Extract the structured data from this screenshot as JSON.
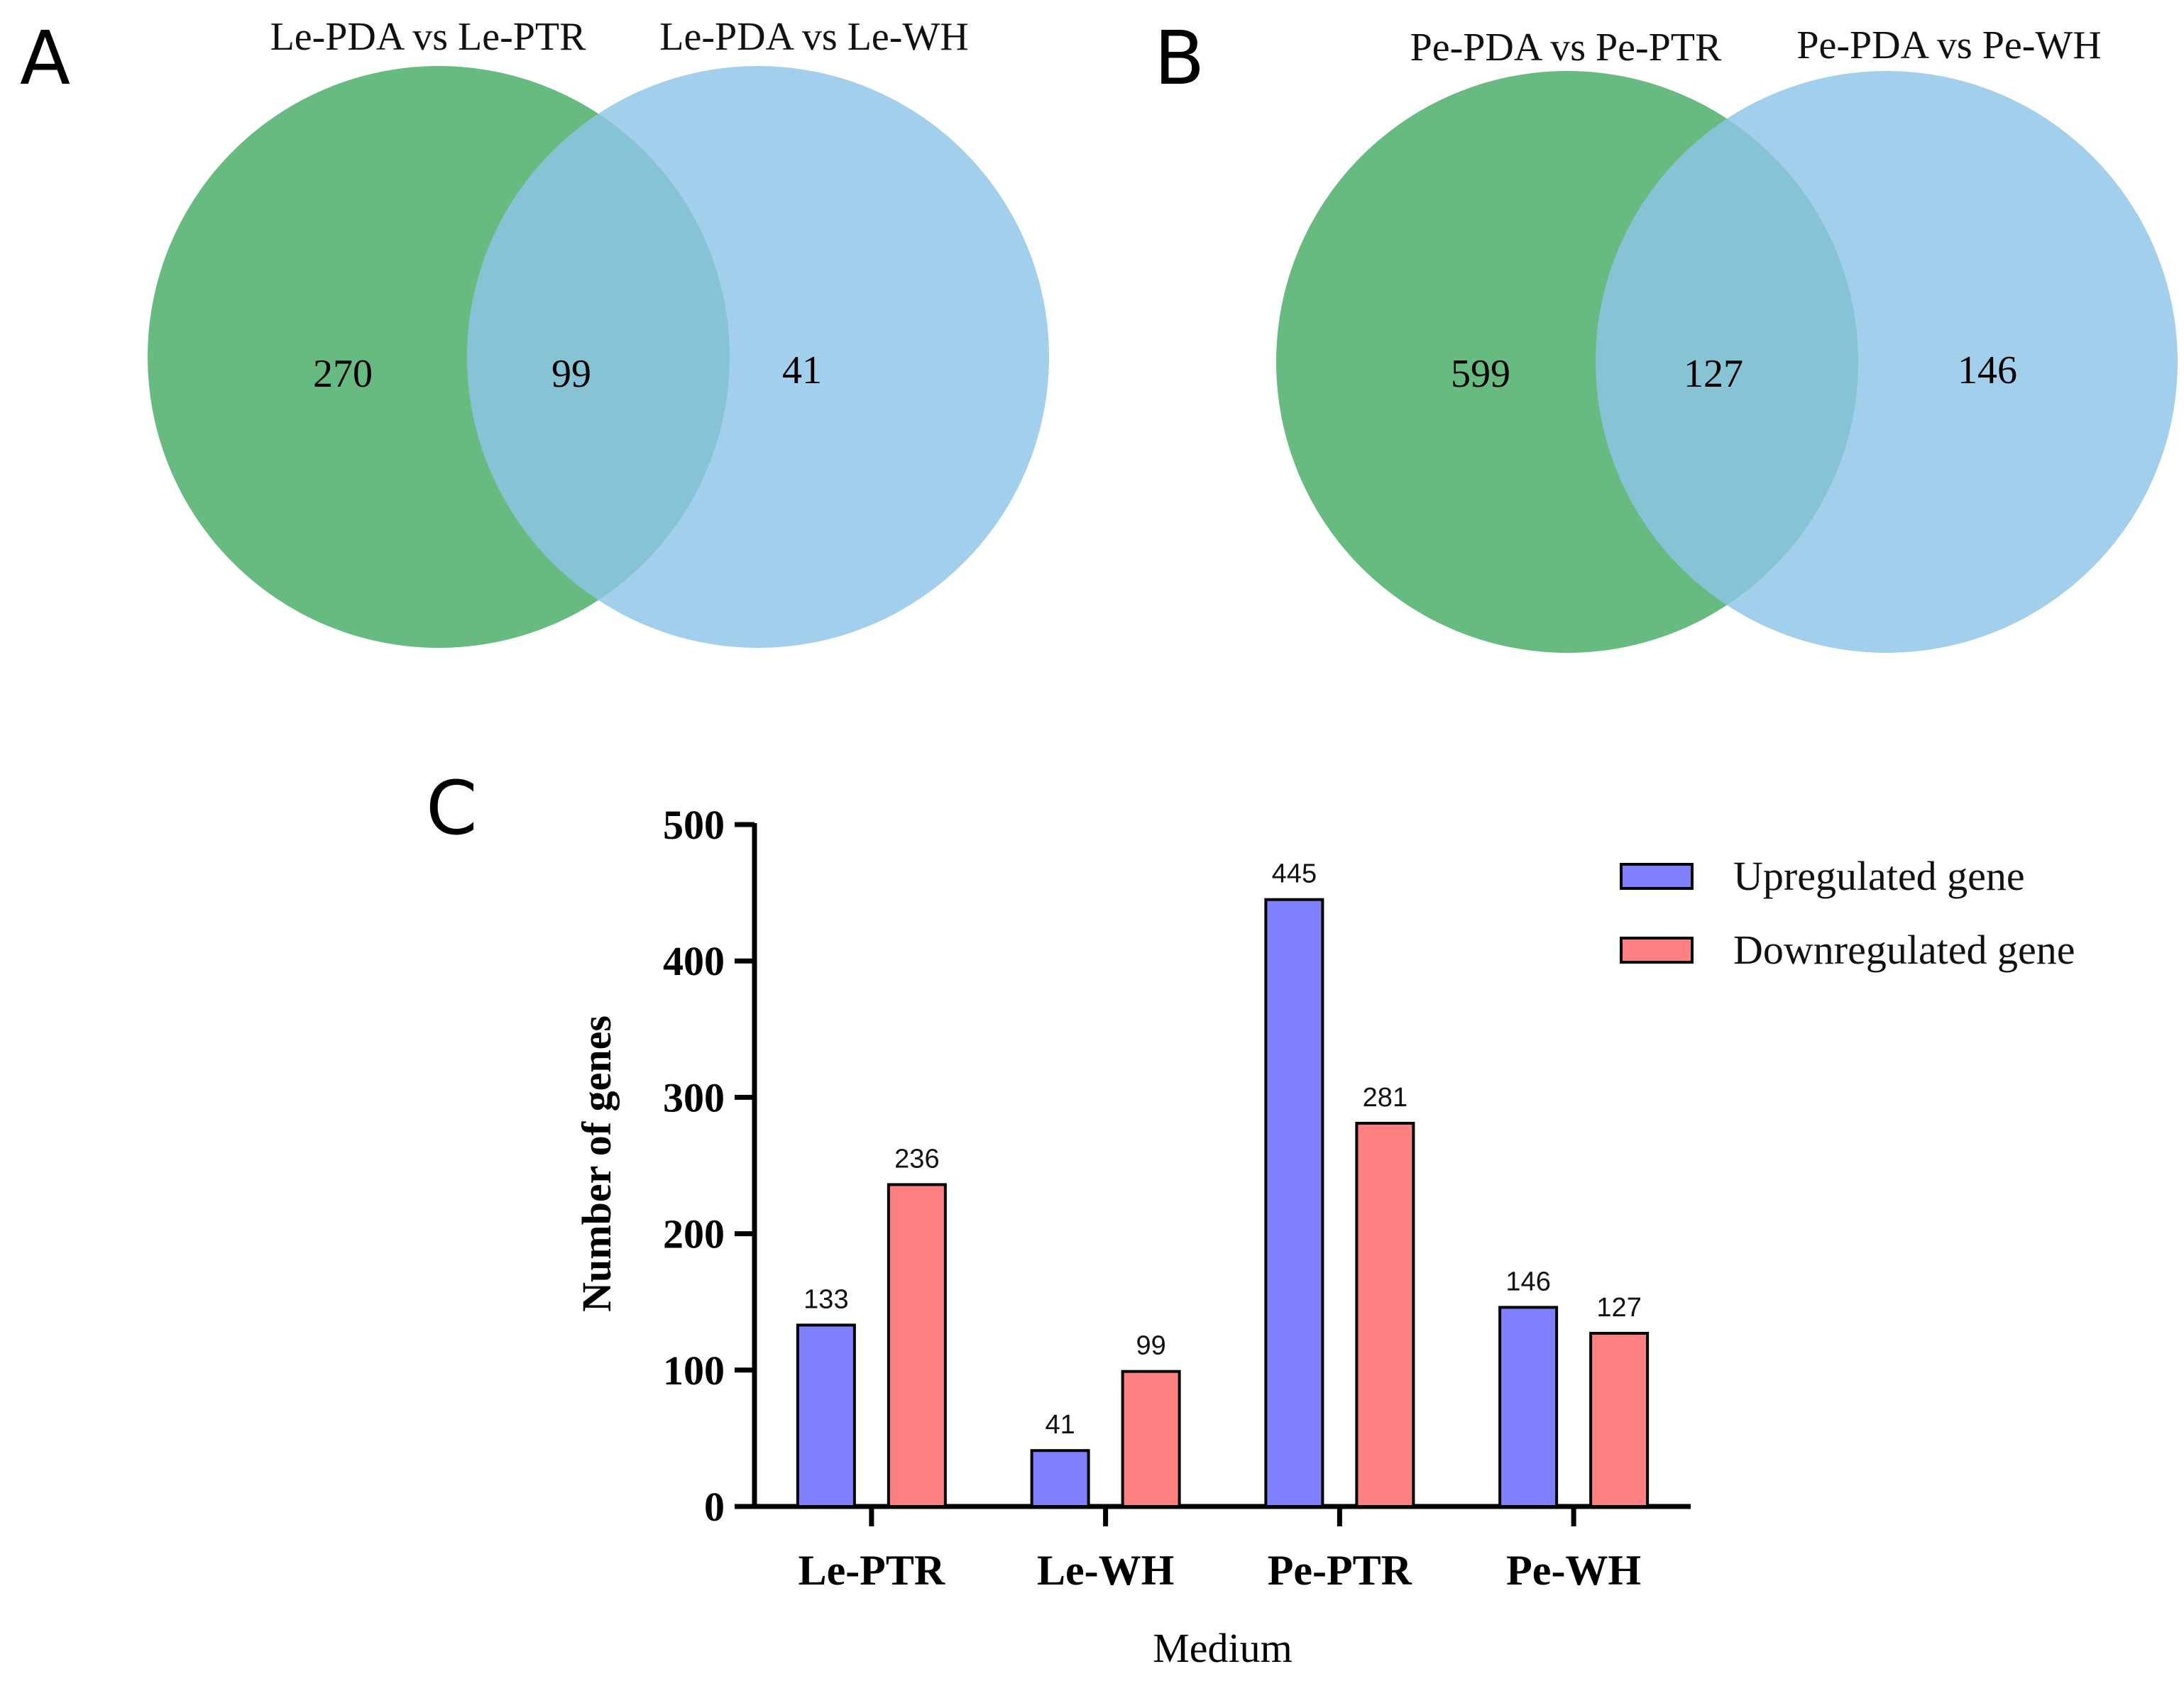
{
  "venn_a": {
    "letter": "A",
    "left_set": "Le-PDA vs Le-PTR",
    "right_set": "Le-PDA vs Le-WH",
    "left_only": "270",
    "intersection": "99",
    "right_only": "41",
    "left_color": "#4caf6a",
    "right_color": "#8ec4e8"
  },
  "venn_b": {
    "letter": "B",
    "left_set": "Pe-PDA vs Pe-PTR",
    "right_set": "Pe-PDA vs Pe-WH",
    "left_only": "599",
    "intersection": "127",
    "right_only": "146",
    "left_color": "#4caf6a",
    "right_color": "#8ec4e8"
  },
  "chart_data": {
    "type": "bar",
    "letter": "C",
    "title": "",
    "xlabel": "Medium",
    "ylabel": "Number of genes",
    "categories": [
      "Le-PTR",
      "Le-WH",
      "Pe-PTR",
      "Pe-WH"
    ],
    "series": [
      {
        "name": "Upregulated gene",
        "values": [
          133,
          41,
          445,
          146
        ],
        "color": "#8080ff"
      },
      {
        "name": "Downregulated gene",
        "values": [
          236,
          99,
          281,
          127
        ],
        "color": "#ff8080"
      }
    ],
    "ylim": [
      0,
      500
    ],
    "yticks": [
      "0",
      "100",
      "200",
      "300",
      "400",
      "500"
    ],
    "grid": false,
    "legend": "top-right"
  }
}
